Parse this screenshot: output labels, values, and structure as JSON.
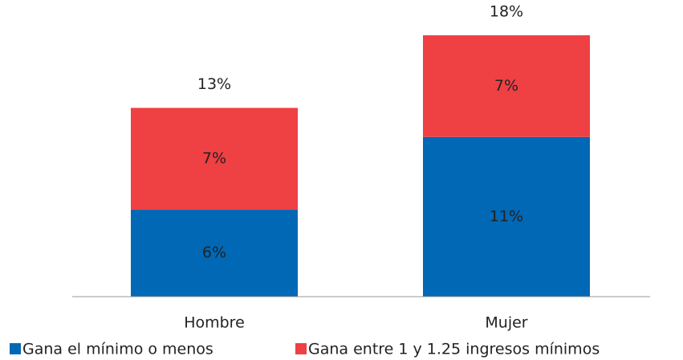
{
  "chart_data": {
    "type": "stacked_bar",
    "categories": [
      "Hombre",
      "Mujer"
    ],
    "series": [
      {
        "name": "Gana el mínimo o menos",
        "color": "#0068b5",
        "values": [
          6,
          11
        ],
        "value_labels": [
          "6%",
          "11%"
        ]
      },
      {
        "name": "Gana entre 1 y 1.25 ingresos mínimos",
        "color": "#ef4044",
        "values": [
          7,
          7
        ],
        "value_labels": [
          "7%",
          "7%"
        ]
      }
    ],
    "totals": [
      13,
      18
    ],
    "total_labels": [
      "13%",
      "18%"
    ],
    "legend": "bottom"
  }
}
